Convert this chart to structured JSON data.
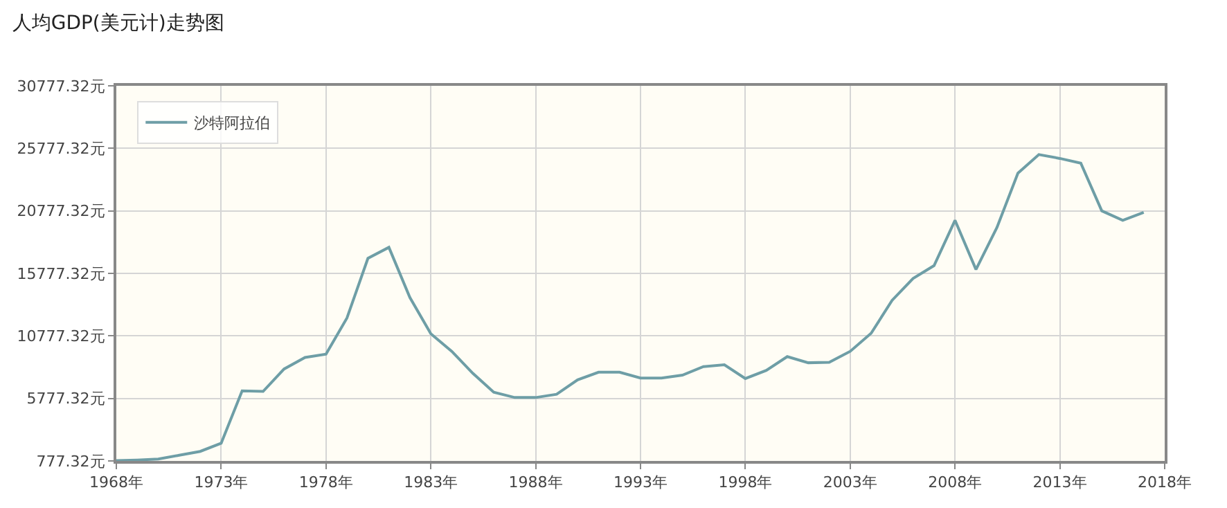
{
  "chart_data": {
    "type": "line",
    "title": "人均GDP(美元计)走势图",
    "x": [
      1968,
      1969,
      1970,
      1971,
      1972,
      1973,
      1974,
      1975,
      1976,
      1977,
      1978,
      1979,
      1980,
      1981,
      1982,
      1983,
      1984,
      1985,
      1986,
      1987,
      1988,
      1989,
      1990,
      1991,
      1992,
      1993,
      1994,
      1995,
      1996,
      1997,
      1998,
      1999,
      2000,
      2001,
      2002,
      2003,
      2004,
      2005,
      2006,
      2007,
      2008,
      2009,
      2010,
      2011,
      2012,
      2013,
      2014,
      2015,
      2016,
      2017
    ],
    "series": [
      {
        "name": "沙特阿拉伯",
        "color": "#6e9ea6",
        "values": [
          800,
          850,
          930,
          1230,
          1540,
          2190,
          6380,
          6340,
          8130,
          9050,
          9320,
          12210,
          16980,
          17860,
          13850,
          10950,
          9540,
          7790,
          6270,
          5850,
          5850,
          6110,
          7260,
          7870,
          7870,
          7410,
          7410,
          7640,
          8320,
          8470,
          7370,
          8020,
          9120,
          8630,
          8660,
          9540,
          10990,
          13620,
          15370,
          16400,
          20020,
          16090,
          19450,
          23790,
          25280,
          24970,
          24590,
          20780,
          20020,
          20660
        ]
      }
    ],
    "xlim": [
      1968,
      2018
    ],
    "xticks": [
      {
        "value": 1968,
        "label": "1968年"
      },
      {
        "value": 1973,
        "label": "1973年"
      },
      {
        "value": 1978,
        "label": "1978年"
      },
      {
        "value": 1983,
        "label": "1983年"
      },
      {
        "value": 1988,
        "label": "1988年"
      },
      {
        "value": 1993,
        "label": "1993年"
      },
      {
        "value": 1998,
        "label": "1998年"
      },
      {
        "value": 2003,
        "label": "2003年"
      },
      {
        "value": 2008,
        "label": "2008年"
      },
      {
        "value": 2013,
        "label": "2013年"
      },
      {
        "value": 2018,
        "label": "2018年"
      }
    ],
    "ylim": [
      777.32,
      30777.32
    ],
    "yticks": [
      {
        "value": 777.32,
        "label": "777.32元"
      },
      {
        "value": 5777.32,
        "label": "5777.32元"
      },
      {
        "value": 10777.32,
        "label": "10777.32元"
      },
      {
        "value": 15777.32,
        "label": "15777.32元"
      },
      {
        "value": 20777.32,
        "label": "20777.32元"
      },
      {
        "value": 25777.32,
        "label": "25777.32元"
      },
      {
        "value": 30777.32,
        "label": "30777.32元"
      }
    ],
    "grid": true,
    "legend": "top left",
    "marker": "none",
    "line_style": "solid"
  }
}
